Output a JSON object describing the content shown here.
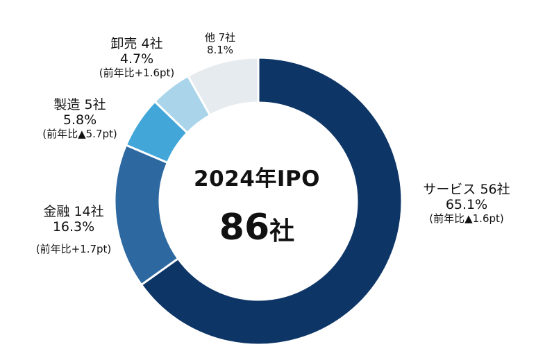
{
  "center": {
    "title": "2024年IPO",
    "total_value": "86",
    "total_unit": "社"
  },
  "chart_data": {
    "type": "pie",
    "donut": true,
    "title": "2024年IPO",
    "total": 86,
    "slices": [
      {
        "name": "サービス",
        "count": 56,
        "count_text": "56社",
        "pct": 65.1,
        "pct_text": "65.1%",
        "change": "(前年比▲1.6pt)",
        "color": "#0d3566"
      },
      {
        "name": "金融",
        "count": 14,
        "count_text": "14社",
        "pct": 16.3,
        "pct_text": "16.3%",
        "change": "(前年比+1.7pt)",
        "color": "#2d68a1"
      },
      {
        "name": "製造",
        "count": 5,
        "count_text": "5社",
        "pct": 5.8,
        "pct_text": "5.8%",
        "change": "(前年比▲5.7pt)",
        "color": "#42a6d8"
      },
      {
        "name": "卸売",
        "count": 4,
        "count_text": "4社",
        "pct": 4.7,
        "pct_text": "4.7%",
        "change": "(前年比+1.6pt)",
        "color": "#a9d4ea"
      },
      {
        "name": "他",
        "count": 7,
        "count_text": "7社",
        "pct": 8.1,
        "pct_text": "8.1%",
        "change": "",
        "color": "#e6ebef"
      }
    ]
  }
}
